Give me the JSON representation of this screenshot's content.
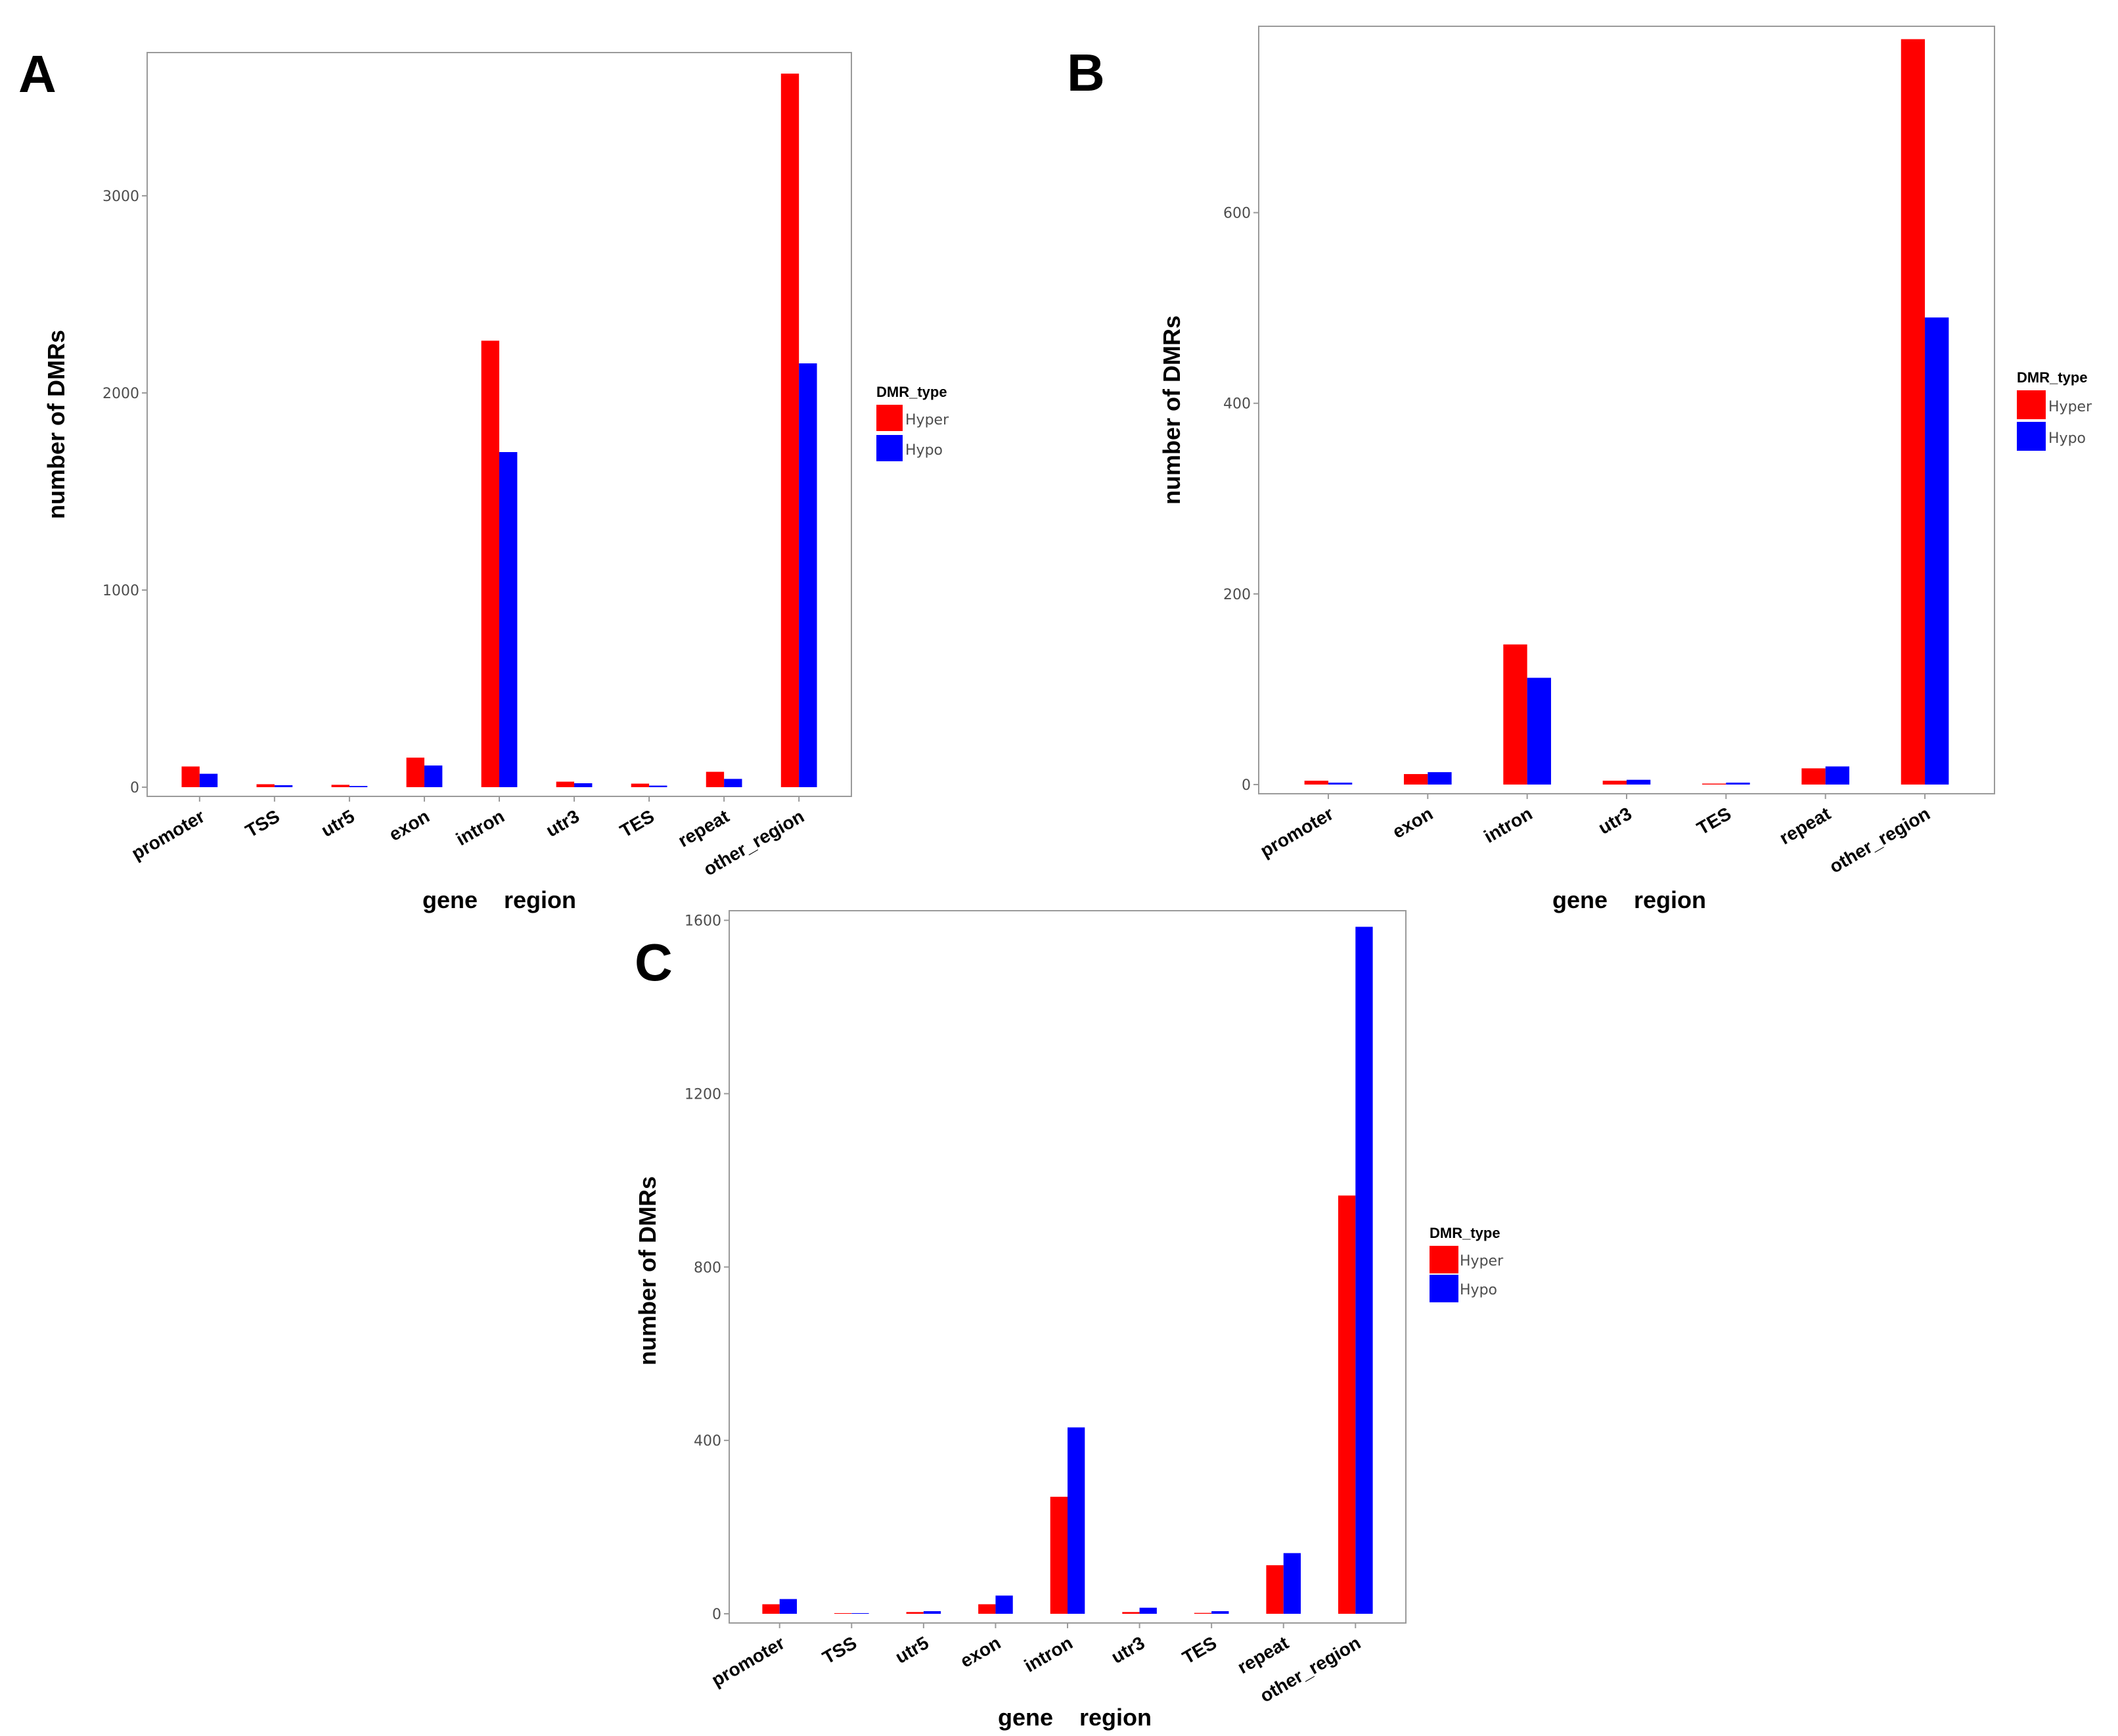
{
  "colors": {
    "hyper": "#ff0000",
    "hypo": "#0000ff",
    "axis": "#9a9a9a"
  },
  "chart_data": [
    {
      "type": "bar",
      "panel": "A",
      "xlabel": "gene    region",
      "ylabel": "number    of    DMRs",
      "ylim": [
        0,
        3700
      ],
      "yticks": [
        0,
        1000,
        2000,
        3000
      ],
      "ytick_labels": [
        "0",
        "1000",
        "2000",
        "3000"
      ],
      "categories": [
        "promoter",
        "TSS",
        "utr5",
        "exon",
        "intron",
        "utr3",
        "TES",
        "repeat",
        "other_region"
      ],
      "legend_title": "DMR_type",
      "series": [
        {
          "name": "Hyper",
          "values": [
            105,
            15,
            12,
            150,
            2265,
            28,
            18,
            78,
            3620
          ]
        },
        {
          "name": "Hypo",
          "values": [
            68,
            10,
            6,
            110,
            1700,
            20,
            8,
            42,
            2150
          ]
        }
      ]
    },
    {
      "type": "bar",
      "panel": "B",
      "xlabel": "gene    region",
      "ylabel": "number    of    DMRs",
      "ylim": [
        0,
        790
      ],
      "yticks": [
        0,
        200,
        400,
        600
      ],
      "ytick_labels": [
        "0",
        "200",
        "400",
        "600"
      ],
      "categories": [
        "promoter",
        "exon",
        "intron",
        "utr3",
        "TES",
        "repeat",
        "other_region"
      ],
      "legend_title": "DMR_type",
      "series": [
        {
          "name": "Hyper",
          "values": [
            4,
            11,
            147,
            4,
            1,
            17,
            782
          ]
        },
        {
          "name": "Hypo",
          "values": [
            2,
            13,
            112,
            5,
            2,
            19,
            490
          ]
        }
      ]
    },
    {
      "type": "bar",
      "panel": "C",
      "xlabel": "gene    region",
      "ylabel": "number    of    DMRs",
      "ylim": [
        0,
        1610
      ],
      "yticks": [
        0,
        400,
        800,
        1200,
        1600
      ],
      "ytick_labels": [
        "0",
        "400",
        "800",
        "1200",
        "1600"
      ],
      "categories": [
        "promoter",
        "TSS",
        "utr5",
        "exon",
        "intron",
        "utr3",
        "TES",
        "repeat",
        "other_region"
      ],
      "legend_title": "DMR_type",
      "series": [
        {
          "name": "Hyper",
          "values": [
            22,
            1,
            4,
            22,
            270,
            4,
            2,
            112,
            965
          ]
        },
        {
          "name": "Hypo",
          "values": [
            34,
            1,
            6,
            42,
            430,
            14,
            6,
            140,
            1585
          ]
        }
      ]
    }
  ]
}
